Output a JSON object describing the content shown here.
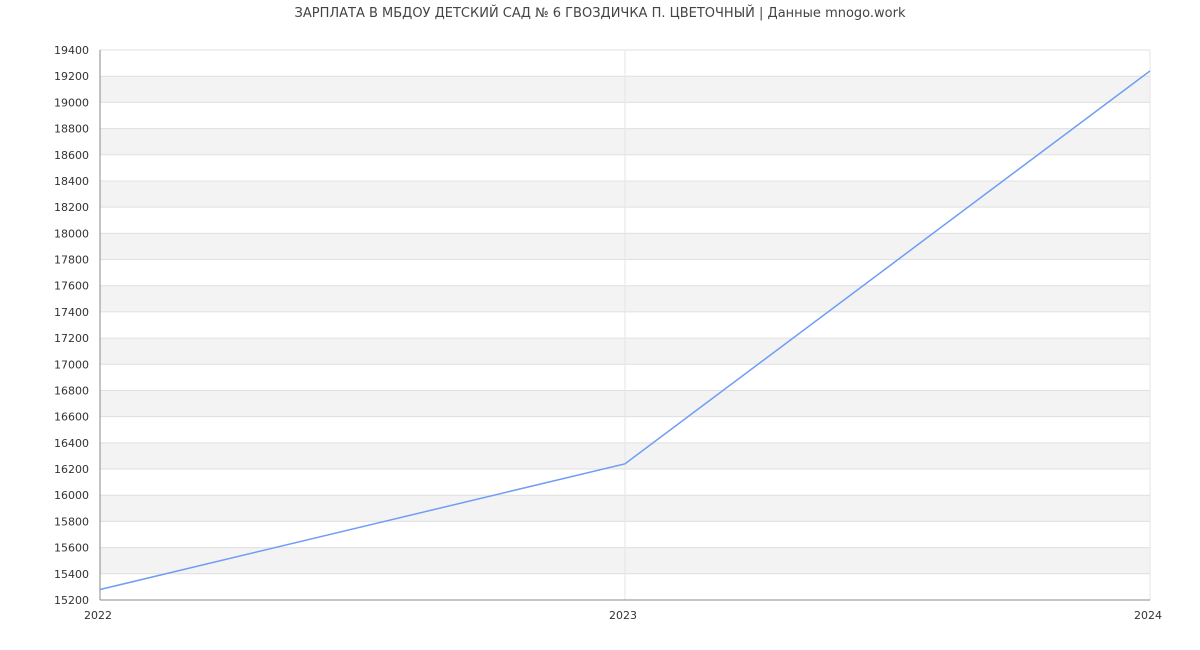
{
  "chart_data": {
    "type": "line",
    "title": "ЗАРПЛАТА В МБДОУ ДЕТСКИЙ САД № 6 ГВОЗДИЧКА П. ЦВЕТОЧНЫЙ | Данные mnogo.work",
    "x": [
      "2022",
      "2023",
      "2024"
    ],
    "series": [
      {
        "values": [
          15280,
          16240,
          19240
        ],
        "color": "#6f9cf5"
      }
    ],
    "ylim": [
      15200,
      19400
    ],
    "ytick_step": 200,
    "grid": true,
    "xlabel": "",
    "ylabel": ""
  }
}
